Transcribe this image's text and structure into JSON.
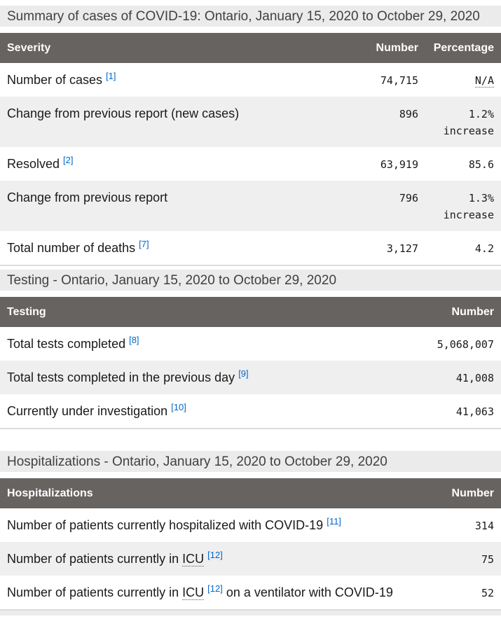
{
  "colors": {
    "header_bg": "#666361",
    "caption_bg": "#ebebeb",
    "stripe_bg": "#efefef",
    "link_blue": "#0066cc",
    "caption_text": "#414042",
    "body_text": "#1a1a1a"
  },
  "tables": [
    {
      "caption": "Summary of cases of COVID-19: Ontario, January 15, 2020 to October 29, 2020",
      "columns": [
        "Severity",
        "Number",
        "Percentage"
      ],
      "rows": [
        {
          "pre": "Number of cases",
          "sup": "[1]",
          "number": "74,715",
          "pct_abbr": "N/A"
        },
        {
          "pre": "Change from previous report (new cases)",
          "number": "896",
          "pct": "1.2%",
          "pct2": "increase"
        },
        {
          "pre": "Resolved",
          "sup": "[2]",
          "number": "63,919",
          "pct": "85.6"
        },
        {
          "pre": "Change from previous report",
          "number": "796",
          "pct": "1.3%",
          "pct2": "increase"
        },
        {
          "pre": "Total number of deaths",
          "sup": "[7]",
          "number": "3,127",
          "pct": "4.2"
        }
      ]
    },
    {
      "caption": "Testing - Ontario, January 15, 2020 to October 29, 2020",
      "columns": [
        "Testing",
        "Number"
      ],
      "rows": [
        {
          "pre": "Total tests completed",
          "sup": "[8]",
          "number": "5,068,007"
        },
        {
          "pre": "Total tests completed in the previous day",
          "sup": "[9]",
          "number": "41,008"
        },
        {
          "pre": "Currently under investigation",
          "sup": "[10]",
          "number": "41,063"
        }
      ]
    },
    {
      "caption": "Hospitalizations - Ontario, January 15, 2020 to October 29, 2020",
      "columns": [
        "Hospitalizations",
        "Number"
      ],
      "rows": [
        {
          "pre": "Number of patients currently hospitalized with COVID-19",
          "sup": "[11]",
          "number": "314"
        },
        {
          "pre": "Number of patients currently in ",
          "abbr": "ICU",
          "sup": "[12]",
          "number": "75"
        },
        {
          "pre": "Number of patients currently in ",
          "abbr": "ICU",
          "sup": "[12]",
          "post": " on a ventilator with COVID-19",
          "number": "52"
        }
      ]
    }
  ]
}
